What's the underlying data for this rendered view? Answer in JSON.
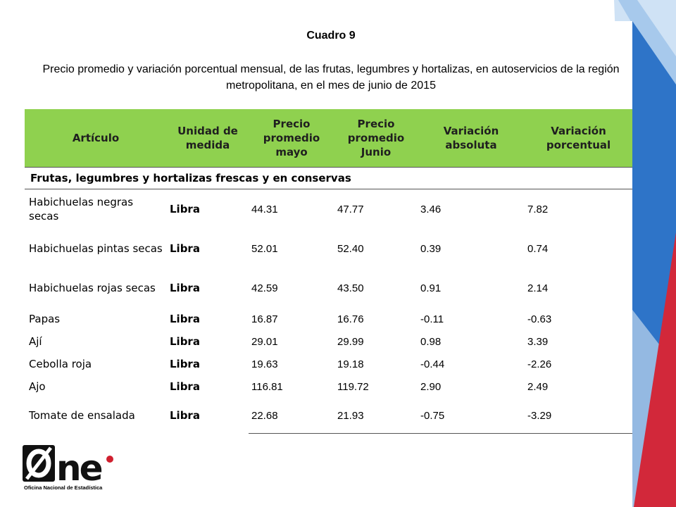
{
  "title": "Cuadro 9",
  "subtitle": "Precio promedio y variación porcentual mensual, de las frutas, legumbres y hortalizas, en autoservicios de la región metropolitana,  en el mes de junio de 2015",
  "table": {
    "headers": [
      "Artículo",
      "Unidad de medida",
      "Precio promedio mayo",
      "Precio promedio Junio",
      "Variación absoluta",
      "Variación porcentual"
    ],
    "section": "Frutas, legumbres y hortalizas frescas y en conservas",
    "rows": [
      {
        "name": "Habichuelas negras secas",
        "unit": "Libra",
        "may": "44.31",
        "june": "47.77",
        "abs": "3.46",
        "pct": "7.82"
      },
      {
        "name": "Habichuelas pintas secas",
        "unit": "Libra",
        "may": "52.01",
        "june": "52.40",
        "abs": "0.39",
        "pct": "0.74"
      },
      {
        "name": "Habichuelas rojas secas",
        "unit": "Libra",
        "may": "42.59",
        "june": "43.50",
        "abs": "0.91",
        "pct": "2.14"
      },
      {
        "name": "Papas",
        "unit": "Libra",
        "may": "16.87",
        "june": "16.76",
        "abs": "-0.11",
        "pct": "-0.63"
      },
      {
        "name": "Ají",
        "unit": "Libra",
        "may": "29.01",
        "june": "29.99",
        "abs": "0.98",
        "pct": "3.39"
      },
      {
        "name": "Cebolla roja",
        "unit": "Libra",
        "may": "19.63",
        "june": "19.18",
        "abs": "-0.44",
        "pct": "-2.26"
      },
      {
        "name": "Ajo",
        "unit": "Libra",
        "may": "116.81",
        "june": "119.72",
        "abs": "2.90",
        "pct": "2.49"
      },
      {
        "name": "Tomate de ensalada",
        "unit": "Libra",
        "may": "22.68",
        "june": "21.93",
        "abs": "-0.75",
        "pct": "-3.29"
      }
    ]
  },
  "logo": {
    "text": "One",
    "caption": "Oficina Nacional de Estadística",
    "colors": {
      "black": "#111111",
      "red": "#d0202f"
    }
  },
  "colors": {
    "header_green": "#8fd14f",
    "deco_blue": "#2e74c8",
    "deco_light_blue": "#9cc3ea",
    "deco_red": "#d2283a"
  }
}
